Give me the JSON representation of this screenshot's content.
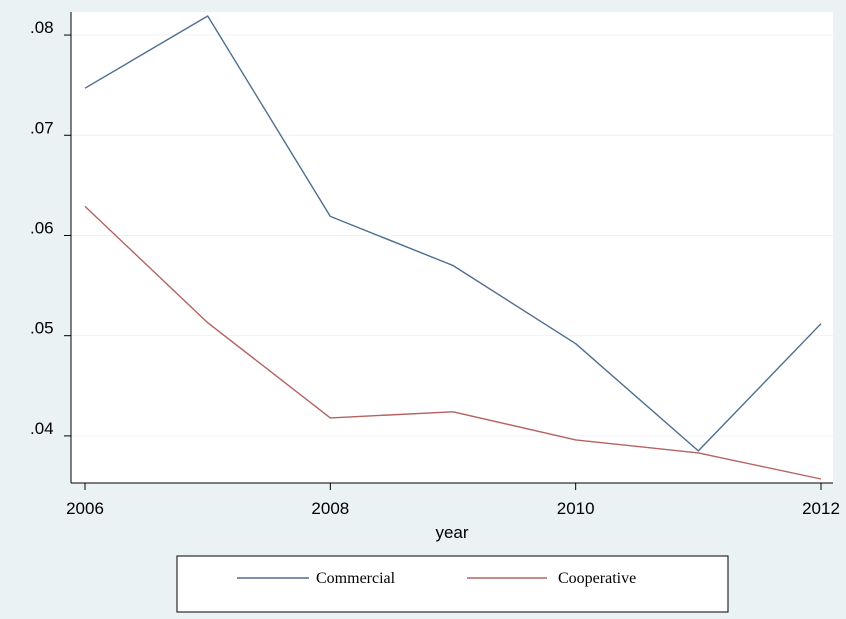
{
  "chart_data": {
    "type": "line",
    "title": "",
    "xlabel": "year",
    "ylabel": "",
    "x": [
      2006,
      2007,
      2008,
      2009,
      2010,
      2011,
      2012
    ],
    "xticks": [
      2006,
      2008,
      2010,
      2012
    ],
    "xtick_labels": [
      "2006",
      "2008",
      "2010",
      "2012"
    ],
    "yticks": [
      0.04,
      0.05,
      0.06,
      0.07,
      0.08
    ],
    "ytick_labels": [
      ".04",
      ".05",
      ".06",
      ".07",
      ".08"
    ],
    "xlim": [
      2006,
      2012
    ],
    "ylim": [
      0.0353,
      0.0823
    ],
    "grid": true,
    "legend_position": "bottom",
    "series": [
      {
        "name": "Commercial",
        "color": "#4e6e8e",
        "values": [
          0.0747,
          0.0819,
          0.0619,
          0.057,
          0.0492,
          0.0385,
          0.0512
        ]
      },
      {
        "name": "Cooperative",
        "color": "#b56262",
        "values": [
          0.0629,
          0.0513,
          0.0418,
          0.0424,
          0.0396,
          0.0383,
          0.0357
        ]
      }
    ]
  }
}
